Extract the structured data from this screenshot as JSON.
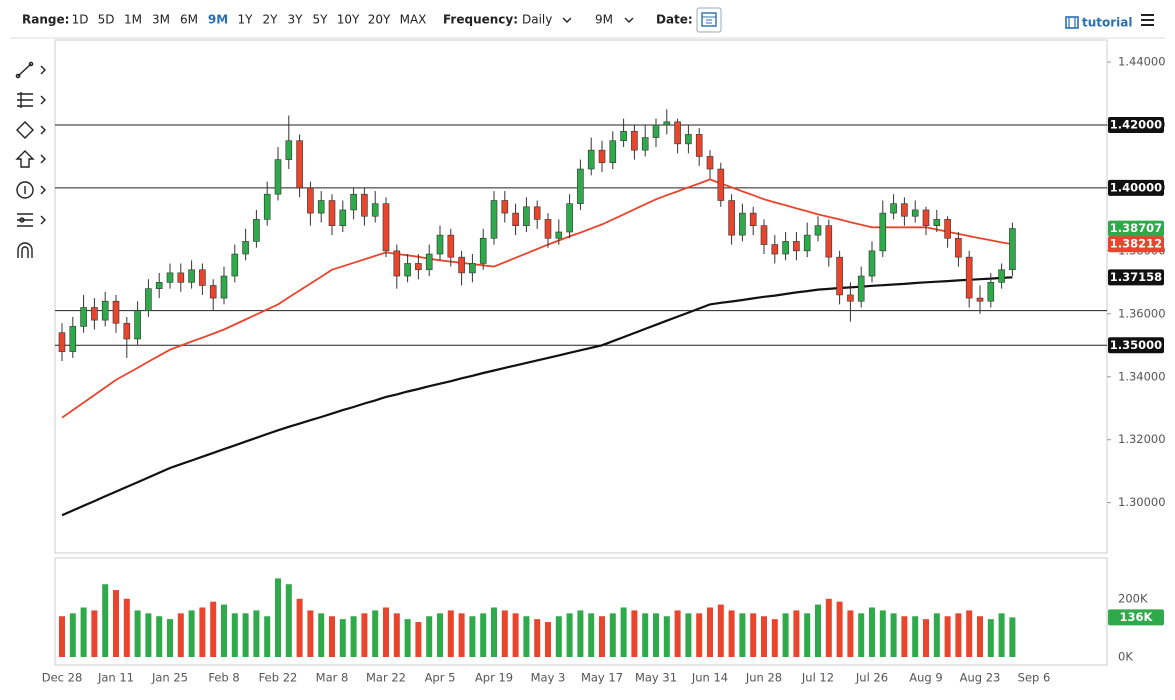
{
  "toolbar": {
    "range_label": "Range:",
    "ranges": [
      "1D",
      "5D",
      "1M",
      "3M",
      "6M",
      "9M",
      "1Y",
      "2Y",
      "3Y",
      "5Y",
      "10Y",
      "20Y",
      "MAX"
    ],
    "active_range": 5,
    "frequency_label": "Frequency:",
    "frequency": "Daily",
    "period": "9M",
    "date_label": "Date:",
    "tutorial": "tutorial"
  },
  "chart_data": [
    {
      "type": "candlestick",
      "categories": [
        "Dec 28",
        null,
        null,
        null,
        null,
        "Jan 11",
        null,
        null,
        null,
        null,
        "Jan 25",
        null,
        null,
        null,
        null,
        "Feb 8",
        null,
        null,
        null,
        null,
        "Feb 22",
        null,
        null,
        null,
        null,
        "Mar 8",
        null,
        null,
        null,
        null,
        "Mar 22",
        null,
        null,
        null,
        null,
        "Apr 5",
        null,
        null,
        null,
        null,
        "Apr 19",
        null,
        null,
        null,
        null,
        "May 3",
        null,
        null,
        null,
        null,
        "May 17",
        null,
        null,
        null,
        null,
        "May 31",
        null,
        null,
        null,
        null,
        "Jun 14",
        null,
        null,
        null,
        null,
        "Jun 28",
        null,
        null,
        null,
        null,
        "Jul 12",
        null,
        null,
        null,
        null,
        "Jul 26",
        null,
        null,
        null,
        null,
        "Aug 9",
        null,
        null,
        null,
        null,
        "Aug 23",
        null,
        null,
        null,
        null,
        "Sep 6"
      ],
      "open": [
        1.354,
        1.348,
        1.356,
        1.362,
        1.358,
        1.364,
        1.357,
        1.352,
        1.361,
        1.368,
        1.37,
        1.373,
        1.37,
        1.374,
        1.369,
        1.365,
        1.372,
        1.379,
        1.383,
        1.39,
        1.398,
        1.409,
        1.415,
        1.4,
        1.392,
        1.396,
        1.388,
        1.393,
        1.398,
        1.391,
        1.395,
        1.38,
        1.372,
        1.376,
        1.374,
        1.379,
        1.385,
        1.378,
        1.373,
        1.376,
        1.384,
        1.396,
        1.392,
        1.388,
        1.394,
        1.39,
        1.384,
        1.386,
        1.395,
        1.406,
        1.412,
        1.408,
        1.415,
        1.418,
        1.412,
        1.416,
        1.42,
        1.421,
        1.414,
        1.417,
        1.41,
        1.406,
        1.396,
        1.385,
        1.392,
        1.388,
        1.382,
        1.379,
        1.383,
        1.38,
        1.385,
        1.388,
        1.378,
        1.366,
        1.364,
        1.372,
        1.38,
        1.392,
        1.395,
        1.391,
        1.393,
        1.388,
        1.39,
        1.384,
        1.378,
        1.365,
        1.364,
        1.37,
        1.374,
        null,
        null
      ],
      "high": [
        1.357,
        1.359,
        1.366,
        1.365,
        1.367,
        1.366,
        1.359,
        1.364,
        1.371,
        1.373,
        1.376,
        1.376,
        1.377,
        1.376,
        1.371,
        1.375,
        1.382,
        1.387,
        1.393,
        1.402,
        1.413,
        1.423,
        1.417,
        1.402,
        1.399,
        1.398,
        1.396,
        1.4,
        1.4,
        1.399,
        1.397,
        1.382,
        1.379,
        1.379,
        1.382,
        1.388,
        1.387,
        1.38,
        1.379,
        1.387,
        1.399,
        1.399,
        1.395,
        1.397,
        1.396,
        1.392,
        1.39,
        1.398,
        1.409,
        1.416,
        1.415,
        1.418,
        1.422,
        1.42,
        1.42,
        1.422,
        1.425,
        1.422,
        1.42,
        1.419,
        1.412,
        1.408,
        1.398,
        1.395,
        1.394,
        1.39,
        1.385,
        1.386,
        1.386,
        1.389,
        1.391,
        1.39,
        1.38,
        1.37,
        1.375,
        1.383,
        1.396,
        1.398,
        1.397,
        1.396,
        1.394,
        1.393,
        1.391,
        1.386,
        1.38,
        1.369,
        1.373,
        1.376,
        1.389,
        null,
        null
      ],
      "low": [
        1.345,
        1.346,
        1.354,
        1.355,
        1.356,
        1.354,
        1.346,
        1.35,
        1.359,
        1.365,
        1.368,
        1.367,
        1.368,
        1.366,
        1.361,
        1.363,
        1.37,
        1.377,
        1.381,
        1.388,
        1.396,
        1.406,
        1.397,
        1.388,
        1.389,
        1.385,
        1.386,
        1.39,
        1.388,
        1.389,
        1.378,
        1.368,
        1.37,
        1.371,
        1.372,
        1.377,
        1.375,
        1.369,
        1.37,
        1.374,
        1.382,
        1.389,
        1.385,
        1.386,
        1.387,
        1.381,
        1.382,
        1.384,
        1.393,
        1.404,
        1.405,
        1.406,
        1.413,
        1.409,
        1.41,
        1.413,
        1.417,
        1.411,
        1.411,
        1.407,
        1.403,
        1.394,
        1.382,
        1.383,
        1.385,
        1.379,
        1.376,
        1.377,
        1.377,
        1.378,
        1.383,
        1.375,
        1.363,
        1.3575,
        1.362,
        1.37,
        1.378,
        1.39,
        1.388,
        1.389,
        1.385,
        1.386,
        1.381,
        1.375,
        1.362,
        1.36,
        1.362,
        1.368,
        1.372,
        null,
        null
      ],
      "close": [
        1.348,
        1.356,
        1.362,
        1.358,
        1.364,
        1.357,
        1.352,
        1.361,
        1.368,
        1.37,
        1.373,
        1.37,
        1.374,
        1.369,
        1.365,
        1.372,
        1.379,
        1.383,
        1.39,
        1.398,
        1.409,
        1.415,
        1.4,
        1.392,
        1.396,
        1.388,
        1.393,
        1.398,
        1.391,
        1.395,
        1.38,
        1.372,
        1.376,
        1.374,
        1.379,
        1.385,
        1.378,
        1.373,
        1.376,
        1.384,
        1.396,
        1.392,
        1.388,
        1.394,
        1.39,
        1.384,
        1.386,
        1.395,
        1.406,
        1.412,
        1.408,
        1.415,
        1.418,
        1.412,
        1.416,
        1.42,
        1.421,
        1.414,
        1.417,
        1.41,
        1.406,
        1.396,
        1.385,
        1.392,
        1.388,
        1.382,
        1.379,
        1.383,
        1.38,
        1.385,
        1.388,
        1.378,
        1.366,
        1.364,
        1.372,
        1.38,
        1.392,
        1.395,
        1.391,
        1.393,
        1.388,
        1.39,
        1.384,
        1.378,
        1.365,
        1.364,
        1.37,
        1.374,
        1.3871,
        null,
        null
      ],
      "up_color": "#2eaa4a",
      "down_color": "#e8452c",
      "series": [
        {
          "color": "#e8452c",
          "values": [
            1.327,
            1.3294,
            1.3318,
            1.3342,
            1.3366,
            1.339,
            1.3409,
            1.3428,
            1.3448,
            1.3467,
            1.3486,
            1.3499,
            1.3512,
            1.3524,
            1.3537,
            1.355,
            1.3566,
            1.3582,
            1.3598,
            1.3614,
            1.363,
            1.3652,
            1.3674,
            1.3696,
            1.3718,
            1.374,
            1.3751,
            1.3762,
            1.3773,
            1.3784,
            1.3795,
            1.379,
            1.3786,
            1.3781,
            1.3775,
            1.377,
            1.3766,
            1.3762,
            1.3758,
            1.3754,
            1.375,
            1.3764,
            1.3778,
            1.3792,
            1.3806,
            1.382,
            1.3833,
            1.3846,
            1.3858,
            1.3871,
            1.3884,
            1.39,
            1.3916,
            1.3932,
            1.3948,
            1.3964,
            1.3977,
            1.3989,
            1.4002,
            1.4014,
            1.4027,
            1.4014,
            1.4002,
            1.3989,
            1.3977,
            1.3964,
            1.3954,
            1.3945,
            1.3935,
            1.3926,
            1.3916,
            1.3908,
            1.39,
            1.3891,
            1.3883,
            1.3875,
            1.3875,
            1.3875,
            1.3875,
            1.3875,
            1.3875,
            1.3868,
            1.3861,
            1.3854,
            1.3847,
            1.384,
            1.3834,
            1.3827,
            1.3821,
            null,
            null
          ]
        },
        {
          "color": "#111111",
          "values": [
            1.296,
            1.2975,
            1.299,
            1.3005,
            1.302,
            1.3035,
            1.305,
            1.3065,
            1.308,
            1.3095,
            1.311,
            1.3122,
            1.3134,
            1.3146,
            1.3158,
            1.317,
            1.3182,
            1.3194,
            1.3206,
            1.3218,
            1.323,
            1.3241,
            1.3251,
            1.3262,
            1.3272,
            1.3283,
            1.3294,
            1.3304,
            1.3315,
            1.3325,
            1.3336,
            1.3344,
            1.3353,
            1.3361,
            1.337,
            1.3378,
            1.3386,
            1.3395,
            1.3403,
            1.3412,
            1.342,
            1.3428,
            1.3436,
            1.3444,
            1.3452,
            1.346,
            1.3468,
            1.3476,
            1.3484,
            1.3492,
            1.35,
            1.3513,
            1.3526,
            1.3539,
            1.3552,
            1.3565,
            1.3578,
            1.3591,
            1.3604,
            1.3617,
            1.363,
            1.3635,
            1.3639,
            1.3644,
            1.3649,
            1.3654,
            1.3658,
            1.3663,
            1.3668,
            1.3672,
            1.3677,
            1.3679,
            1.3682,
            1.3684,
            1.3686,
            1.3689,
            1.3691,
            1.3693,
            1.3695,
            1.3698,
            1.37,
            1.3702,
            1.3704,
            1.3706,
            1.3708,
            1.371,
            1.3712,
            1.3714,
            1.3716,
            null,
            null
          ]
        }
      ],
      "ylim": [
        1.284,
        1.447
      ],
      "yticks": [
        {
          "value": 1.3,
          "label": "1.30000"
        },
        {
          "value": 1.32,
          "label": "1.32000"
        },
        {
          "value": 1.34,
          "label": "1.34000"
        },
        {
          "value": 1.36,
          "label": "1.36000"
        },
        {
          "value": 1.38,
          "label": "1.38000"
        },
        {
          "value": 1.4,
          "label": "1.40000"
        },
        {
          "value": 1.42,
          "label": "1.42000"
        },
        {
          "value": 1.44,
          "label": "1.44000"
        }
      ],
      "levels": [
        1.42,
        1.4,
        1.361,
        1.35
      ],
      "price_tags": [
        {
          "value": 1.42,
          "label": "1.42000",
          "color": "#111111"
        },
        {
          "value": 1.4,
          "label": "1.40000",
          "color": "#111111"
        },
        {
          "value": 1.38707,
          "label": "1.38707",
          "color": "#2eaa4a"
        },
        {
          "value": 1.38212,
          "label": "1.38212",
          "color": "#e8452c"
        },
        {
          "value": 1.37158,
          "label": "1.37158",
          "color": "#111111"
        },
        {
          "value": 1.35,
          "label": "1.35000",
          "color": "#111111"
        }
      ]
    },
    {
      "type": "bar",
      "values": [
        140000,
        150000,
        170000,
        160000,
        250000,
        230000,
        200000,
        160000,
        150000,
        140000,
        130000,
        150000,
        160000,
        170000,
        190000,
        180000,
        150000,
        150000,
        160000,
        140000,
        270000,
        250000,
        200000,
        160000,
        150000,
        140000,
        130000,
        140000,
        150000,
        160000,
        170000,
        150000,
        130000,
        120000,
        140000,
        150000,
        160000,
        150000,
        140000,
        150000,
        170000,
        160000,
        150000,
        140000,
        130000,
        120000,
        140000,
        150000,
        160000,
        150000,
        140000,
        150000,
        170000,
        160000,
        150000,
        150000,
        140000,
        160000,
        150000,
        150000,
        170000,
        180000,
        160000,
        150000,
        150000,
        140000,
        130000,
        150000,
        160000,
        150000,
        180000,
        200000,
        190000,
        160000,
        150000,
        170000,
        160000,
        150000,
        140000,
        140000,
        130000,
        150000,
        140000,
        150000,
        160000,
        140000,
        130000,
        150000,
        136000,
        null,
        null
      ],
      "ylim": [
        0,
        340000
      ],
      "yticks": [
        {
          "value": 0,
          "label": "0K"
        },
        {
          "value": 200000,
          "label": "200K"
        }
      ],
      "price_tags": [
        {
          "value": 136000,
          "label": "136K",
          "color": "#2eaa4a"
        }
      ]
    }
  ]
}
